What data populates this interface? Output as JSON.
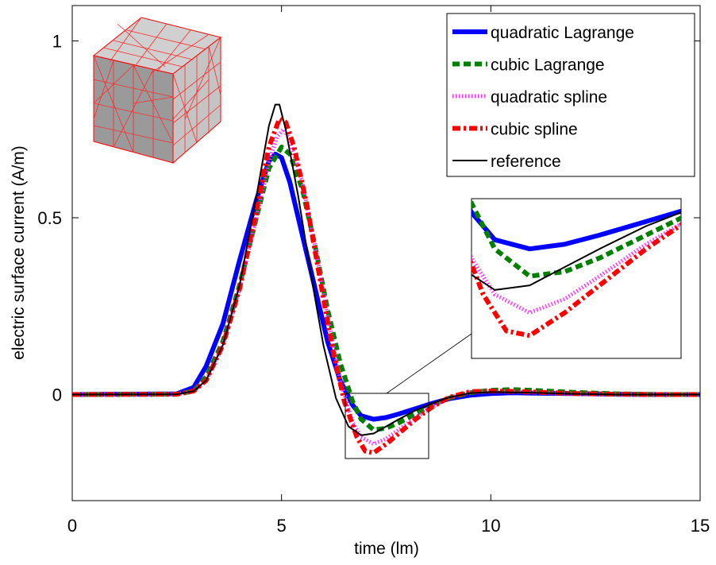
{
  "chart_data": {
    "type": "line",
    "title": "",
    "xlabel": "time (lm)",
    "ylabel": "electric surface current (A/m)",
    "xlim": [
      0,
      15
    ],
    "ylim": [
      -0.3,
      1.1
    ],
    "x_ticks": [
      "0",
      "5",
      "10",
      "15"
    ],
    "y_ticks": [
      "0",
      "0.5",
      "1"
    ],
    "grid": false,
    "legend_position": "top-right",
    "inset_image": "cube mesh icon",
    "series": [
      {
        "name": "quadratic Lagrange",
        "color": "#0000ff",
        "style": "solid-thick",
        "x": [
          0,
          2.5,
          2.9,
          3.2,
          3.6,
          4.0,
          4.4,
          4.7,
          4.85,
          5.0,
          5.2,
          5.5,
          5.8,
          6.1,
          6.4,
          6.7,
          6.9,
          7.2,
          7.5,
          7.8,
          8.2,
          8.6,
          9.0,
          9.5,
          10.0,
          10.5,
          11.0,
          12.0,
          13.0,
          14.0,
          15.0
        ],
        "y": [
          0,
          0.002,
          0.02,
          0.08,
          0.2,
          0.38,
          0.55,
          0.66,
          0.68,
          0.67,
          0.6,
          0.45,
          0.3,
          0.15,
          0.04,
          -0.03,
          -0.06,
          -0.07,
          -0.065,
          -0.055,
          -0.04,
          -0.025,
          -0.012,
          -0.002,
          0.003,
          0.005,
          0.004,
          0.003,
          0.001,
          0.0,
          0.0
        ]
      },
      {
        "name": "cubic Lagrange",
        "color": "#007f00",
        "style": "dashed-thick",
        "x": [
          0,
          2.5,
          2.9,
          3.2,
          3.6,
          4.0,
          4.4,
          4.7,
          5.0,
          5.2,
          5.5,
          5.8,
          6.1,
          6.4,
          6.7,
          6.9,
          7.2,
          7.5,
          7.8,
          8.2,
          8.6,
          9.0,
          9.5,
          10.0,
          10.5,
          11.0,
          12.0,
          13.0,
          14.0,
          15.0
        ],
        "y": [
          0,
          0.001,
          0.01,
          0.05,
          0.15,
          0.31,
          0.5,
          0.64,
          0.7,
          0.68,
          0.58,
          0.42,
          0.24,
          0.09,
          -0.02,
          -0.07,
          -0.1,
          -0.095,
          -0.08,
          -0.055,
          -0.03,
          -0.01,
          0.005,
          0.012,
          0.014,
          0.012,
          0.006,
          0.002,
          0.0,
          0.0
        ]
      },
      {
        "name": "quadratic spline",
        "color": "#ff33ff",
        "style": "dotted-thick",
        "x": [
          0,
          2.5,
          2.9,
          3.2,
          3.6,
          4.0,
          4.4,
          4.7,
          4.9,
          5.05,
          5.2,
          5.5,
          5.8,
          6.1,
          6.4,
          6.7,
          6.9,
          7.2,
          7.5,
          7.8,
          8.2,
          8.6,
          9.0,
          9.5,
          10.0,
          10.5,
          11.0,
          12.0,
          13.0,
          14.0,
          15.0
        ],
        "y": [
          0,
          0.001,
          0.01,
          0.04,
          0.14,
          0.3,
          0.5,
          0.66,
          0.73,
          0.75,
          0.72,
          0.6,
          0.42,
          0.22,
          0.04,
          -0.08,
          -0.12,
          -0.14,
          -0.125,
          -0.1,
          -0.065,
          -0.035,
          -0.008,
          0.006,
          0.009,
          0.008,
          0.006,
          0.002,
          0.0,
          0.0,
          0.0
        ]
      },
      {
        "name": "cubic spline",
        "color": "#ff0000",
        "style": "dashdot-thick",
        "x": [
          0,
          2.5,
          2.9,
          3.2,
          3.6,
          4.0,
          4.4,
          4.7,
          4.95,
          5.1,
          5.3,
          5.6,
          5.9,
          6.2,
          6.5,
          6.8,
          7.0,
          7.2,
          7.5,
          7.8,
          8.2,
          8.6,
          9.0,
          9.5,
          10.0,
          10.5,
          11.0,
          12.0,
          13.0,
          14.0,
          15.0
        ],
        "y": [
          0,
          0.001,
          0.01,
          0.04,
          0.14,
          0.3,
          0.52,
          0.7,
          0.78,
          0.77,
          0.7,
          0.54,
          0.34,
          0.14,
          -0.02,
          -0.12,
          -0.16,
          -0.165,
          -0.14,
          -0.11,
          -0.07,
          -0.035,
          -0.008,
          0.008,
          0.01,
          0.009,
          0.007,
          0.003,
          0.001,
          0.0,
          0.0
        ]
      },
      {
        "name": "reference",
        "color": "#000000",
        "style": "solid-thin",
        "x": [
          0,
          2.5,
          2.9,
          3.2,
          3.6,
          4.0,
          4.4,
          4.7,
          4.85,
          4.95,
          5.1,
          5.4,
          5.7,
          6.0,
          6.3,
          6.6,
          6.9,
          7.2,
          7.5,
          7.8,
          8.2,
          8.6,
          9.0,
          9.5,
          10.0,
          10.5,
          11.0,
          12.0,
          13.0,
          14.0,
          15.0
        ],
        "y": [
          0,
          0.001,
          0.01,
          0.04,
          0.14,
          0.31,
          0.56,
          0.76,
          0.82,
          0.82,
          0.75,
          0.56,
          0.34,
          0.14,
          -0.01,
          -0.09,
          -0.115,
          -0.11,
          -0.09,
          -0.07,
          -0.045,
          -0.025,
          -0.008,
          0.004,
          0.007,
          0.006,
          0.005,
          0.002,
          0.0,
          0.0,
          0.0
        ]
      }
    ]
  }
}
